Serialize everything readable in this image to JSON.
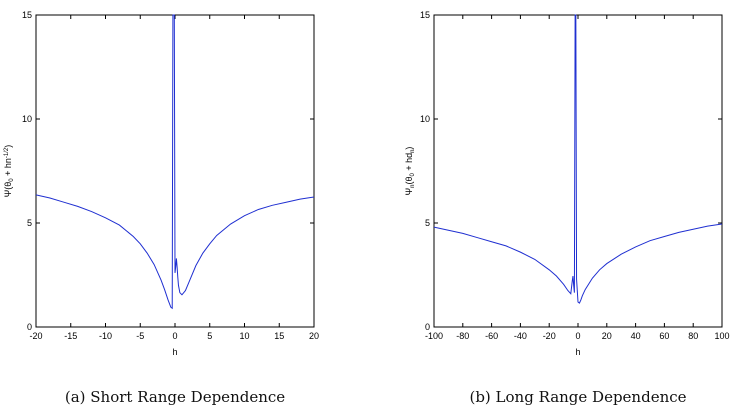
{
  "figures": [
    {
      "caption": "(a) Short Range Dependence",
      "xlabel": "h",
      "ylabel": "Ψ(θ0 + hn-1/2)"
    },
    {
      "caption": "(b) Long Range Dependence",
      "xlabel": "h",
      "ylabel": "Ψn(θ0 + hdn)"
    }
  ],
  "chart_data": [
    {
      "type": "line",
      "title": "",
      "xlabel": "h",
      "ylabel": "Ψ(θ0 + hn-1/2)",
      "xlim": [
        -20,
        20
      ],
      "ylim": [
        0,
        15
      ],
      "xticks": [
        -20,
        -15,
        -10,
        -5,
        0,
        5,
        10,
        15,
        20
      ],
      "yticks": [
        0,
        5,
        10,
        15
      ],
      "grid": false,
      "color": "#1f2fd1",
      "x": [
        -20,
        -18,
        -16,
        -14,
        -12,
        -10,
        -8,
        -6,
        -5,
        -4,
        -3,
        -2,
        -1.5,
        -1,
        -0.6,
        -0.4,
        -0.3,
        -0.2,
        -0.1,
        0,
        0.1,
        0.2,
        0.3,
        0.4,
        0.5,
        0.7,
        1,
        1.5,
        2,
        3,
        4,
        5,
        6,
        8,
        10,
        12,
        14,
        16,
        18,
        20
      ],
      "y": [
        6.35,
        6.2,
        6.0,
        5.8,
        5.55,
        5.25,
        4.9,
        4.35,
        4.0,
        3.55,
        3.0,
        2.25,
        1.8,
        1.3,
        0.95,
        0.9,
        15,
        15,
        15,
        2.6,
        2.9,
        3.3,
        2.9,
        2.4,
        2.0,
        1.65,
        1.55,
        1.75,
        2.15,
        2.95,
        3.55,
        4.0,
        4.4,
        4.95,
        5.35,
        5.65,
        5.85,
        6.0,
        6.15,
        6.25
      ]
    },
    {
      "type": "line",
      "title": "",
      "xlabel": "h",
      "ylabel": "Ψn(θ0 + hdn)",
      "xlim": [
        -100,
        100
      ],
      "ylim": [
        0,
        15
      ],
      "xticks": [
        -100,
        -80,
        -60,
        -40,
        -20,
        0,
        20,
        40,
        60,
        80,
        100
      ],
      "yticks": [
        0,
        5,
        10,
        15
      ],
      "grid": false,
      "color": "#1f2fd1",
      "x": [
        -100,
        -90,
        -80,
        -70,
        -60,
        -50,
        -40,
        -30,
        -20,
        -15,
        -10,
        -7,
        -5,
        -4,
        -3.5,
        -3,
        -2.5,
        -2,
        -1.5,
        -1,
        0,
        1,
        2,
        3,
        5,
        10,
        15,
        20,
        30,
        40,
        50,
        60,
        70,
        80,
        90,
        100
      ],
      "y": [
        4.8,
        4.65,
        4.5,
        4.3,
        4.1,
        3.9,
        3.6,
        3.25,
        2.75,
        2.45,
        2.05,
        1.75,
        1.6,
        2.2,
        2.45,
        2.0,
        1.65,
        15,
        15,
        2.3,
        1.2,
        1.15,
        1.3,
        1.5,
        1.8,
        2.35,
        2.75,
        3.05,
        3.5,
        3.85,
        4.15,
        4.35,
        4.55,
        4.7,
        4.85,
        4.95
      ]
    }
  ]
}
